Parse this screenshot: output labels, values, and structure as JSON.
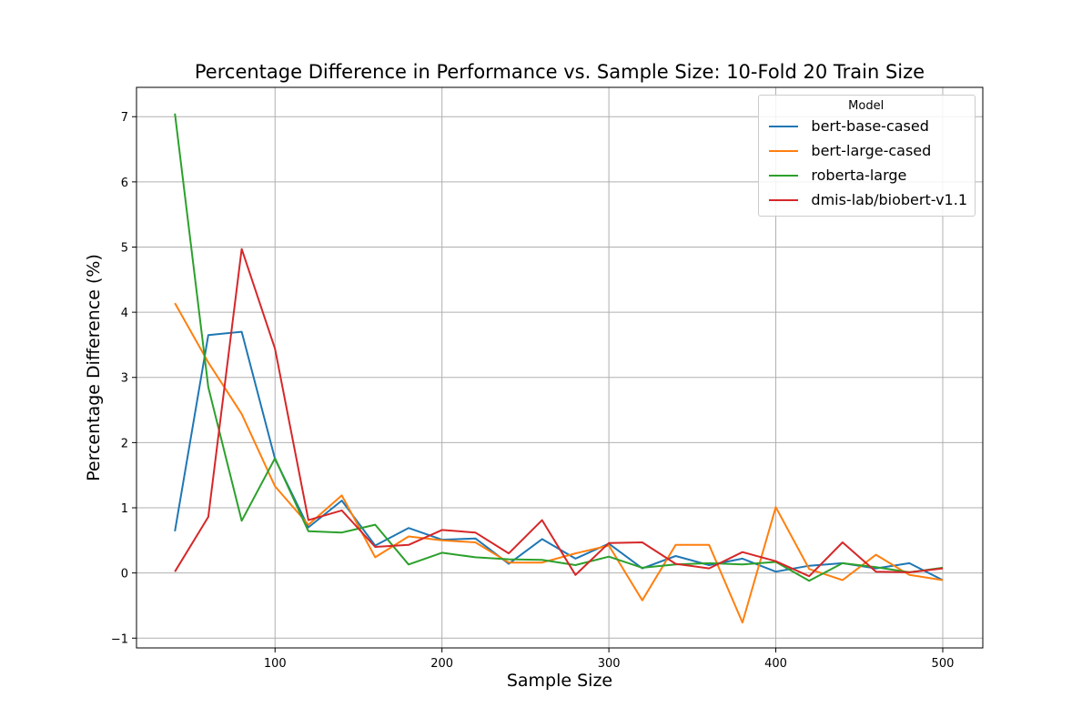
{
  "chart_data": {
    "type": "line",
    "title": "Percentage Difference in Performance vs. Sample Size: 10-Fold 20 Train Size",
    "xlabel": "Sample Size",
    "ylabel": "Percentage Difference (%)",
    "xlim": [
      17,
      524
    ],
    "ylim": [
      -1.15,
      7.45
    ],
    "xticks": [
      100,
      200,
      300,
      400,
      500
    ],
    "yticks": [
      -1,
      0,
      1,
      2,
      3,
      4,
      5,
      6,
      7
    ],
    "grid": true,
    "legend": {
      "title": "Model",
      "position": "top-right"
    },
    "x": [
      40,
      60,
      80,
      100,
      120,
      140,
      160,
      180,
      200,
      220,
      240,
      260,
      280,
      300,
      320,
      340,
      360,
      380,
      400,
      420,
      440,
      460,
      480,
      500
    ],
    "series": [
      {
        "name": "bert-base-cased",
        "color": "#1f77b4",
        "values": [
          0.64,
          3.65,
          3.7,
          1.75,
          0.7,
          1.11,
          0.42,
          0.69,
          0.51,
          0.53,
          0.14,
          0.52,
          0.22,
          0.45,
          0.07,
          0.26,
          0.12,
          0.22,
          0.02,
          0.11,
          0.15,
          0.07,
          0.15,
          -0.11
        ]
      },
      {
        "name": "bert-large-cased",
        "color": "#ff7f0e",
        "values": [
          4.14,
          3.23,
          2.44,
          1.33,
          0.74,
          1.19,
          0.24,
          0.56,
          0.5,
          0.47,
          0.16,
          0.16,
          0.3,
          0.42,
          -0.42,
          0.43,
          0.43,
          -0.76,
          1.01,
          0.06,
          -0.11,
          0.28,
          -0.03,
          -0.11
        ]
      },
      {
        "name": "roberta-large",
        "color": "#2ca02c",
        "values": [
          7.05,
          2.85,
          0.8,
          1.76,
          0.64,
          0.62,
          0.74,
          0.13,
          0.31,
          0.24,
          0.21,
          0.2,
          0.12,
          0.25,
          0.08,
          0.13,
          0.15,
          0.13,
          0.17,
          -0.12,
          0.15,
          0.09,
          0.01,
          0.08
        ]
      },
      {
        "name": "dmis-lab/biobert-v1.1",
        "color": "#d62728",
        "values": [
          0.02,
          0.86,
          4.97,
          3.44,
          0.81,
          0.96,
          0.4,
          0.43,
          0.66,
          0.62,
          0.3,
          0.81,
          -0.03,
          0.46,
          0.47,
          0.14,
          0.07,
          0.32,
          0.18,
          -0.05,
          0.47,
          0.02,
          0.01,
          0.07
        ]
      }
    ]
  }
}
